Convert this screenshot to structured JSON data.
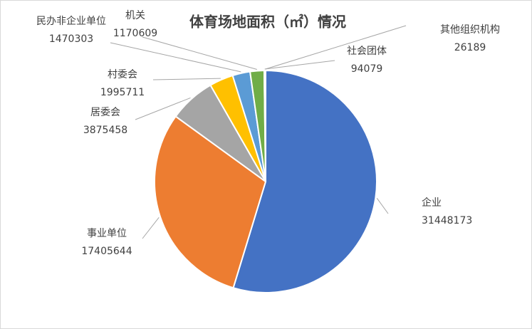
{
  "chart_data": {
    "type": "pie",
    "title": "体育场地面积（㎡）情况",
    "categories": [
      "企业",
      "事业单位",
      "居委会",
      "村委会",
      "民办非企业单位",
      "机关",
      "社会团体",
      "其他组织机构"
    ],
    "values": [
      31448173,
      17405644,
      3875458,
      1995711,
      1470303,
      1170609,
      94079,
      26189
    ],
    "colors": [
      "#4472c4",
      "#ed7d31",
      "#a5a5a5",
      "#ffc000",
      "#5b9bd5",
      "#70ad47",
      "#264478",
      "#9e480e"
    ]
  }
}
